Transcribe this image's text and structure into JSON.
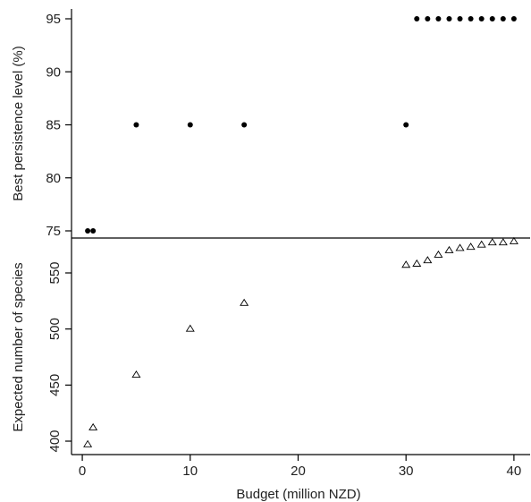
{
  "chart_data": [
    {
      "type": "scatter",
      "panel": "top",
      "ylabel": "Best persistence level (%)",
      "ylim": [
        74,
        96
      ],
      "y_ticks": [
        75,
        80,
        85,
        90,
        95
      ],
      "marker": "filled-circle",
      "points": [
        {
          "x": 0.5,
          "y": 75
        },
        {
          "x": 1,
          "y": 75
        },
        {
          "x": 5,
          "y": 85
        },
        {
          "x": 10,
          "y": 85
        },
        {
          "x": 15,
          "y": 85
        },
        {
          "x": 30,
          "y": 85
        },
        {
          "x": 31,
          "y": 95
        },
        {
          "x": 32,
          "y": 95
        },
        {
          "x": 33,
          "y": 95
        },
        {
          "x": 34,
          "y": 95
        },
        {
          "x": 35,
          "y": 95
        },
        {
          "x": 36,
          "y": 95
        },
        {
          "x": 37,
          "y": 95
        },
        {
          "x": 38,
          "y": 95
        },
        {
          "x": 39,
          "y": 95
        },
        {
          "x": 40,
          "y": 95
        }
      ]
    },
    {
      "type": "scatter",
      "panel": "bottom",
      "xlabel": "Budget (million NZD)",
      "ylabel": "Expected number of species",
      "xlim": [
        -1,
        41.5
      ],
      "x_ticks": [
        0,
        10,
        20,
        30,
        40
      ],
      "ylim": [
        387,
        592
      ],
      "y_ticks": [
        400,
        450,
        500,
        550
      ],
      "marker": "open-triangle",
      "points": [
        {
          "x": 0.5,
          "y": 397
        },
        {
          "x": 1,
          "y": 412
        },
        {
          "x": 5,
          "y": 459
        },
        {
          "x": 10,
          "y": 500
        },
        {
          "x": 15,
          "y": 523
        },
        {
          "x": 30,
          "y": 557
        },
        {
          "x": 31,
          "y": 558
        },
        {
          "x": 32,
          "y": 561
        },
        {
          "x": 33,
          "y": 566
        },
        {
          "x": 34,
          "y": 570
        },
        {
          "x": 35,
          "y": 572
        },
        {
          "x": 36,
          "y": 573
        },
        {
          "x": 37,
          "y": 575
        },
        {
          "x": 38,
          "y": 577
        },
        {
          "x": 39,
          "y": 577
        },
        {
          "x": 40,
          "y": 578
        }
      ]
    }
  ]
}
